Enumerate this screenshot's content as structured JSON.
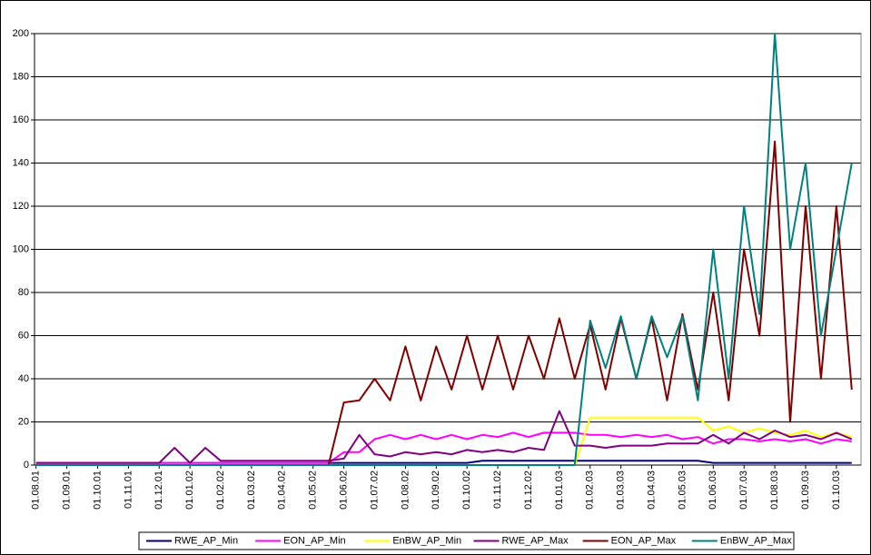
{
  "chart_data": {
    "type": "line",
    "x": [
      0,
      0.5,
      1,
      1.5,
      2,
      2.5,
      3,
      3.5,
      4,
      4.5,
      5,
      5.5,
      6,
      6.5,
      7,
      7.5,
      8,
      8.5,
      9,
      9.5,
      10,
      10.5,
      11,
      11.5,
      12,
      12.5,
      13,
      13.5,
      14,
      14.5,
      15,
      15.5,
      16,
      16.5,
      17,
      17.5,
      18,
      18.5,
      19,
      19.5,
      20,
      20.5,
      21,
      21.5,
      22,
      22.5,
      23,
      23.5,
      24,
      24.5,
      25,
      25.5,
      26,
      26.5
    ],
    "series": [
      {
        "name": "RWE_AP_Min",
        "color": "#000080",
        "values": [
          1,
          1,
          1,
          1,
          1,
          1,
          1,
          1,
          1,
          1,
          1,
          1,
          1,
          1,
          1,
          1,
          1,
          1,
          1,
          1,
          1,
          1,
          1,
          1,
          1,
          1,
          1,
          1,
          1,
          2,
          2,
          2,
          2,
          2,
          2,
          2,
          2,
          2,
          2,
          2,
          2,
          2,
          2,
          2,
          1,
          1,
          1,
          1,
          1,
          1,
          1,
          1,
          1,
          1
        ]
      },
      {
        "name": "EON_AP_Min",
        "color": "#ff00ff",
        "values": [
          1,
          1,
          1,
          1,
          1,
          1,
          1,
          1,
          1,
          1,
          1,
          1,
          1,
          1,
          1,
          1,
          1,
          1,
          1,
          1,
          6,
          6,
          12,
          14,
          12,
          14,
          12,
          14,
          12,
          14,
          13,
          15,
          13,
          15,
          15,
          15,
          14,
          14,
          13,
          14,
          13,
          14,
          12,
          13,
          10,
          12,
          12,
          11,
          12,
          11,
          12,
          10,
          12,
          11
        ]
      },
      {
        "name": "EnBW_AP_Min",
        "color": "#ffff00",
        "values": [
          0,
          0,
          0,
          0,
          0,
          0,
          0,
          0,
          0,
          0,
          0,
          0,
          0,
          0,
          0,
          0,
          0,
          0,
          0,
          0,
          0,
          0,
          0,
          0,
          0,
          0,
          0,
          0,
          0,
          0,
          0,
          0,
          0,
          0,
          0,
          0,
          22,
          22,
          22,
          22,
          22,
          22,
          22,
          22,
          16,
          18,
          15,
          17,
          15,
          14,
          16,
          13,
          15,
          13
        ]
      },
      {
        "name": "RWE_AP_Max",
        "color": "#800080",
        "values": [
          1,
          1,
          1,
          1,
          1,
          1,
          1,
          1,
          1,
          8,
          1,
          8,
          2,
          2,
          2,
          2,
          2,
          2,
          2,
          2,
          3,
          14,
          5,
          4,
          6,
          5,
          6,
          5,
          7,
          6,
          7,
          6,
          8,
          7,
          25,
          9,
          9,
          8,
          9,
          9,
          9,
          10,
          10,
          10,
          14,
          10,
          15,
          12,
          16,
          13,
          14,
          12,
          15,
          12
        ]
      },
      {
        "name": "EON_AP_Max",
        "color": "#800000",
        "values": [
          0,
          0,
          0,
          0,
          0,
          0,
          0,
          0,
          0,
          0,
          0,
          0,
          0,
          0,
          0,
          0,
          0,
          0,
          0,
          0,
          29,
          30,
          40,
          30,
          55,
          30,
          55,
          35,
          60,
          35,
          60,
          35,
          60,
          40,
          68,
          40,
          65,
          35,
          68,
          40,
          68,
          30,
          70,
          35,
          80,
          30,
          100,
          60,
          150,
          20,
          120,
          40,
          120,
          35
        ]
      },
      {
        "name": "EnBW_AP_Max",
        "color": "#008080",
        "values": [
          0,
          0,
          0,
          0,
          0,
          0,
          0,
          0,
          0,
          0,
          0,
          0,
          0,
          0,
          0,
          0,
          0,
          0,
          0,
          0,
          0,
          0,
          0,
          0,
          0,
          0,
          0,
          0,
          0,
          0,
          0,
          0,
          0,
          0,
          0,
          0,
          67,
          45,
          69,
          40,
          69,
          50,
          69,
          30,
          100,
          40,
          120,
          70,
          200,
          100,
          140,
          60,
          100,
          140
        ]
      }
    ],
    "xlim": [
      -0.05,
      26.8
    ],
    "xticks": [
      {
        "value": 0,
        "label": "01.08.01"
      },
      {
        "value": 1,
        "label": "01.09.01"
      },
      {
        "value": 2,
        "label": "01.10.01"
      },
      {
        "value": 3,
        "label": "01.11.01"
      },
      {
        "value": 4,
        "label": "01.12.01"
      },
      {
        "value": 5,
        "label": "01.01.02"
      },
      {
        "value": 6,
        "label": "01.02.02"
      },
      {
        "value": 7,
        "label": "01.03.02"
      },
      {
        "value": 8,
        "label": "01.04.02"
      },
      {
        "value": 9,
        "label": "01.05.02"
      },
      {
        "value": 10,
        "label": "01.06.02"
      },
      {
        "value": 11,
        "label": "01.07.02"
      },
      {
        "value": 12,
        "label": "01.08.02"
      },
      {
        "value": 13,
        "label": "01.09.02"
      },
      {
        "value": 14,
        "label": "01.10.02"
      },
      {
        "value": 15,
        "label": "01.11.02"
      },
      {
        "value": 16,
        "label": "01.12.02"
      },
      {
        "value": 17,
        "label": "01.01.03"
      },
      {
        "value": 18,
        "label": "01.02.03"
      },
      {
        "value": 19,
        "label": "01.03.03"
      },
      {
        "value": 20,
        "label": "01.04.03"
      },
      {
        "value": 21,
        "label": "01.05.03"
      },
      {
        "value": 22,
        "label": "01.06.03"
      },
      {
        "value": 23,
        "label": "01.07.03"
      },
      {
        "value": 24,
        "label": "01.08.03"
      },
      {
        "value": 25,
        "label": "01.09.03"
      },
      {
        "value": 26,
        "label": "01.10.03"
      }
    ],
    "ylim": [
      0,
      200
    ],
    "yticks": [
      0,
      20,
      40,
      60,
      80,
      100,
      120,
      140,
      160,
      180,
      200
    ],
    "grid": true,
    "legend": "bottom"
  }
}
